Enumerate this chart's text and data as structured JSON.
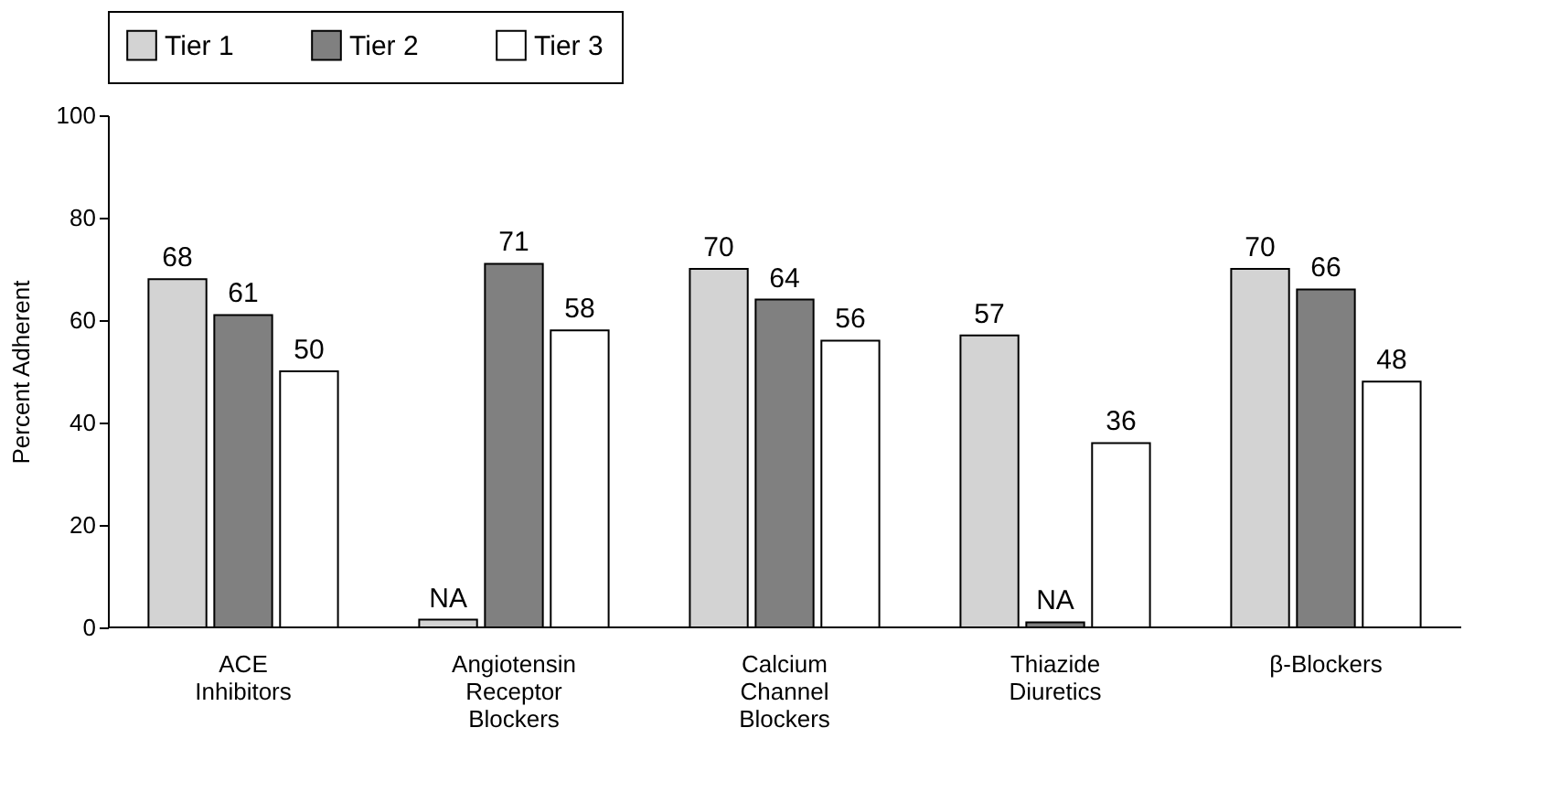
{
  "chart_data": {
    "type": "bar",
    "ylabel": "Percent Adherent",
    "categories": [
      "ACE Inhibitors",
      "Angiotensin Receptor Blockers",
      "Calcium Channel Blockers",
      "Thiazide Diuretics",
      "β-Blockers"
    ],
    "series": [
      {
        "name": "Tier 1",
        "color": "#d3d3d3",
        "values": [
          68,
          1.5,
          70,
          57,
          70
        ],
        "value_labels": [
          "68",
          "NA",
          "70",
          "57",
          "70"
        ]
      },
      {
        "name": "Tier 2",
        "color": "#808080",
        "values": [
          61,
          71,
          64,
          1,
          66
        ],
        "value_labels": [
          "61",
          "71",
          "64",
          "NA",
          "66"
        ]
      },
      {
        "name": "Tier 3",
        "color": "#ffffff",
        "values": [
          50,
          58,
          56,
          36,
          48
        ],
        "value_labels": [
          "50",
          "58",
          "56",
          "36",
          "48"
        ]
      }
    ],
    "ylim": [
      0,
      100
    ],
    "yticks": [
      0,
      20,
      40,
      60,
      80,
      100
    ],
    "grid": false,
    "legend": "top"
  }
}
